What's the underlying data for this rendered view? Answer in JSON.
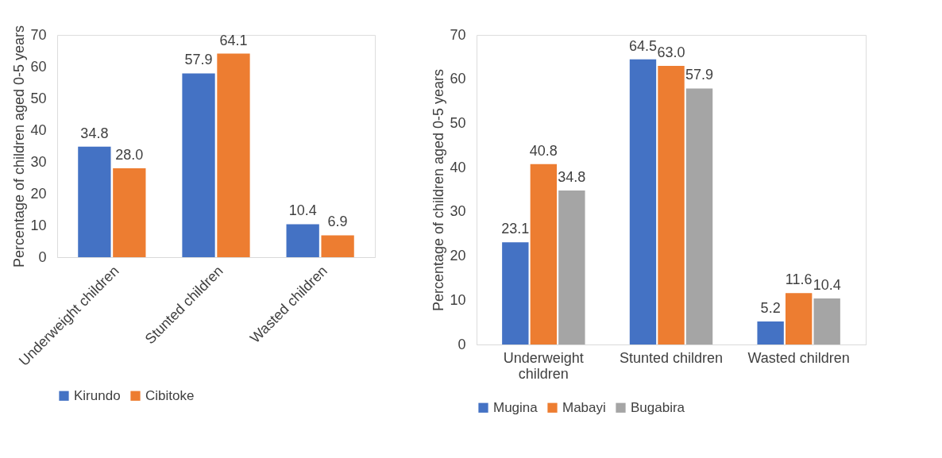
{
  "chart_data": [
    {
      "type": "bar",
      "ylabel": "Percentage of children aged 0-5 years",
      "categories": [
        "Underweight children",
        "Stunted children",
        "Wasted children"
      ],
      "series": [
        {
          "name": "Kirundo",
          "color": "#4472c4",
          "values": [
            34.8,
            57.9,
            10.4
          ],
          "value_labels": [
            "34.8",
            "57.9",
            "10.4"
          ]
        },
        {
          "name": "Cibitoke",
          "color": "#ed7d31",
          "values": [
            28.0,
            64.1,
            6.9
          ],
          "value_labels": [
            "28.0",
            "64.1",
            "6.9"
          ]
        }
      ],
      "ylim": [
        0,
        70
      ],
      "yticks": [
        0,
        10,
        20,
        30,
        40,
        50,
        60,
        70
      ],
      "grid": false,
      "legend": "bottom"
    },
    {
      "type": "bar",
      "ylabel": "Percentage of children aged 0-5 years",
      "categories": [
        "Underweight children",
        "Stunted children",
        "Wasted children"
      ],
      "series": [
        {
          "name": "Mugina",
          "color": "#4472c4",
          "values": [
            23.1,
            64.5,
            5.2
          ],
          "value_labels": [
            "23.1",
            "64.5",
            "5.2"
          ]
        },
        {
          "name": "Mabayi",
          "color": "#ed7d31",
          "values": [
            40.8,
            63.0,
            11.6
          ],
          "value_labels": [
            "40.8",
            "63.0",
            "11.6"
          ]
        },
        {
          "name": "Bugabira",
          "color": "#a5a5a5",
          "values": [
            34.8,
            57.9,
            10.4
          ],
          "value_labels": [
            "34.8",
            "57.9",
            "10.4"
          ]
        }
      ],
      "ylim": [
        0,
        70
      ],
      "yticks": [
        0,
        10,
        20,
        30,
        40,
        50,
        60,
        70
      ],
      "grid": false,
      "legend": "bottom"
    }
  ]
}
